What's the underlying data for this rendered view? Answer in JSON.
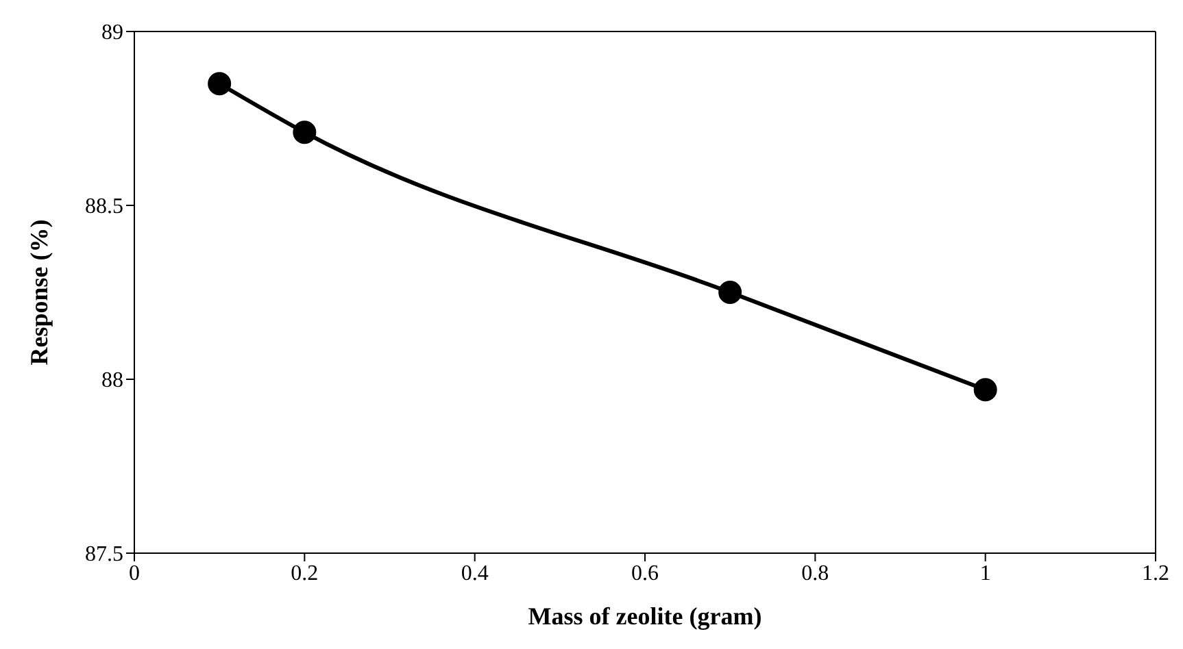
{
  "chart_data": {
    "type": "line",
    "xlabel": "Mass of zeolite (gram)",
    "ylabel": "Response (%)",
    "x": [
      0.1,
      0.2,
      0.7,
      1.0
    ],
    "series": [
      {
        "color": "#000000",
        "values": [
          88.85,
          88.71,
          88.25,
          87.97
        ]
      }
    ],
    "xlim": [
      0,
      1.2
    ],
    "xticks": [
      0,
      0.2,
      0.4,
      0.6,
      0.8,
      1,
      1.2
    ],
    "ylim": [
      87.5,
      89
    ],
    "yticks": [
      87.5,
      88,
      88.5,
      89
    ],
    "grid": false,
    "legend": false,
    "marker": "circle",
    "line_style": "solid"
  }
}
